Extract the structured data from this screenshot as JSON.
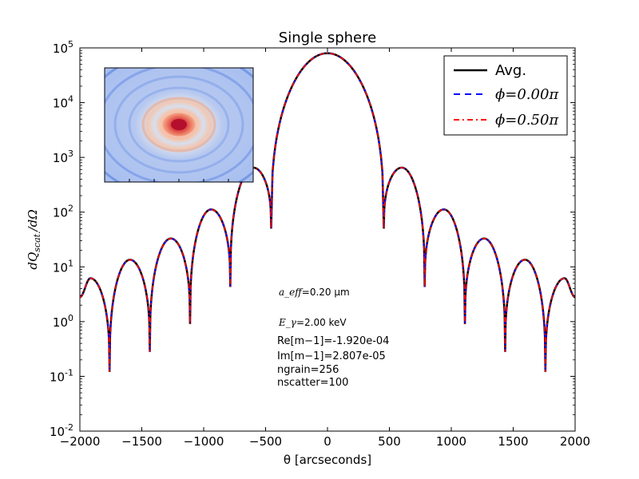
{
  "chart_data": {
    "type": "line",
    "title": "Single sphere",
    "xlabel": "θ [arcseconds]",
    "ylabel": "dQ_scat./dΩ",
    "xlim": [
      -2000,
      2000
    ],
    "ylim_log10": [
      -2,
      5
    ],
    "yscale": "log",
    "grid": false,
    "legend_placement": "top-right",
    "xticks": [
      "−2000",
      "−1500",
      "−1000",
      "−500",
      "0",
      "500",
      "1000",
      "1500",
      "2000"
    ],
    "yticks": [
      {
        "base": "10",
        "exp": "-2"
      },
      {
        "base": "10",
        "exp": "-1"
      },
      {
        "base": "10",
        "exp": "0"
      },
      {
        "base": "10",
        "exp": "1"
      },
      {
        "base": "10",
        "exp": "2"
      },
      {
        "base": "10",
        "exp": "3"
      },
      {
        "base": "10",
        "exp": "4"
      },
      {
        "base": "10",
        "exp": "5"
      }
    ],
    "series": [
      {
        "name": "Avg.",
        "color": "#000000",
        "style": "solid"
      },
      {
        "name": "ϕ=0.00π",
        "color": "#0000ff",
        "style": "dashed"
      },
      {
        "name": "ϕ=0.50π",
        "color": "#ff0000",
        "style": "dashdot"
      }
    ],
    "peak": {
      "x": 0,
      "y": 80000
    },
    "maxima": [
      {
        "x": -1915,
        "y": 6.2
      },
      {
        "x": -1595,
        "y": 13.5
      },
      {
        "x": -1265,
        "y": 33
      },
      {
        "x": -940,
        "y": 112
      },
      {
        "x": -600,
        "y": 650
      },
      {
        "x": 600,
        "y": 650
      },
      {
        "x": 940,
        "y": 112
      },
      {
        "x": 1265,
        "y": 33
      },
      {
        "x": 1595,
        "y": 13.5
      },
      {
        "x": 1915,
        "y": 6.2
      }
    ],
    "minima": [
      {
        "x": -1760,
        "y": 0.12
      },
      {
        "x": -1435,
        "y": 0.28
      },
      {
        "x": -1110,
        "y": 0.9
      },
      {
        "x": -785,
        "y": 4.3
      },
      {
        "x": -455,
        "y": 50
      },
      {
        "x": 455,
        "y": 50
      },
      {
        "x": 785,
        "y": 4.3
      },
      {
        "x": 1110,
        "y": 0.9
      },
      {
        "x": 1435,
        "y": 0.28
      },
      {
        "x": 1760,
        "y": 0.12
      }
    ],
    "endpoints": [
      {
        "x": -2000,
        "y": 2.8
      },
      {
        "x": 2000,
        "y": 2.8
      }
    ],
    "annotations": {
      "aeff_label": "a_eff",
      "aeff_value": "=0.20 μm",
      "energy_label": "E_γ",
      "energy_value": "=2.00 keV",
      "re_m": "Re[m−1]=-1.920e-04",
      "im_m": "Im[m−1]=2.807e-05",
      "ngrain": "ngrain=256",
      "nscatter": "nscatter=100"
    },
    "inset": {
      "type": "heatmap",
      "colormap": "coolwarm-rings"
    }
  }
}
